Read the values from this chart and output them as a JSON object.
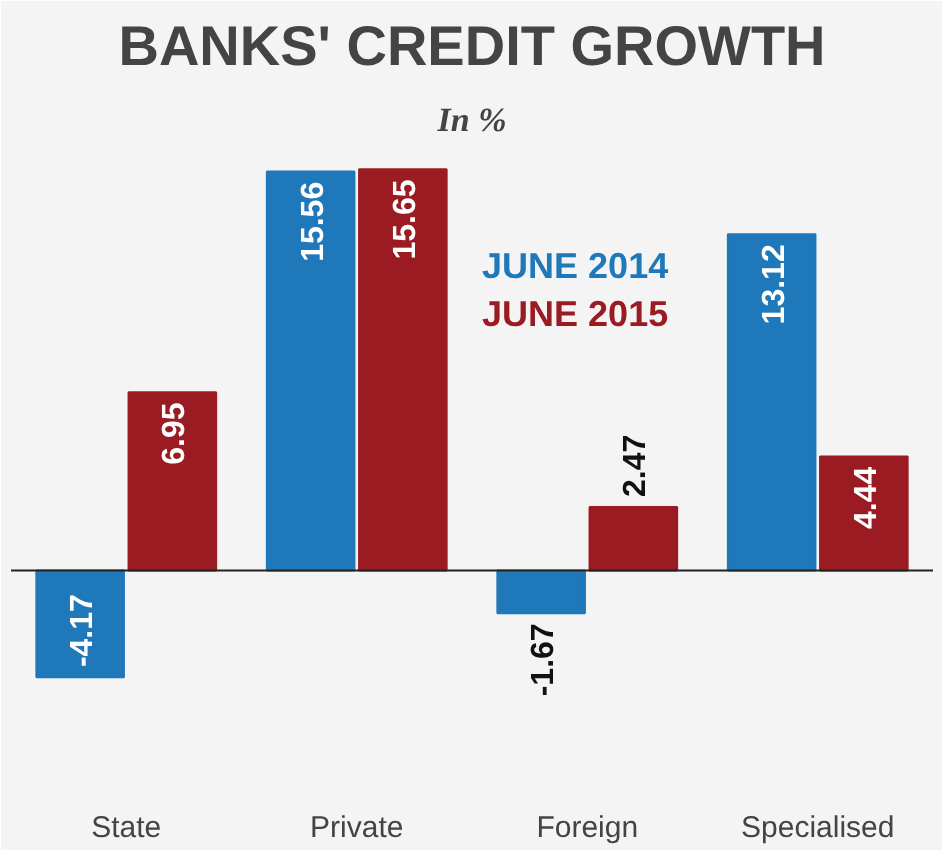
{
  "chart_data": {
    "type": "bar",
    "title": "BANKS' CREDIT GROWTH",
    "subtitle": "In %",
    "categories": [
      "State",
      "Private",
      "Foreign",
      "Specialised"
    ],
    "series": [
      {
        "name": "JUNE 2014",
        "color": "#1f78b9",
        "values": [
          -4.17,
          15.56,
          -1.67,
          13.12
        ]
      },
      {
        "name": "JUNE 2015",
        "color": "#9a1c22",
        "values": [
          6.95,
          15.65,
          2.47,
          4.44
        ]
      }
    ],
    "data_labels": true,
    "legend": "top"
  }
}
